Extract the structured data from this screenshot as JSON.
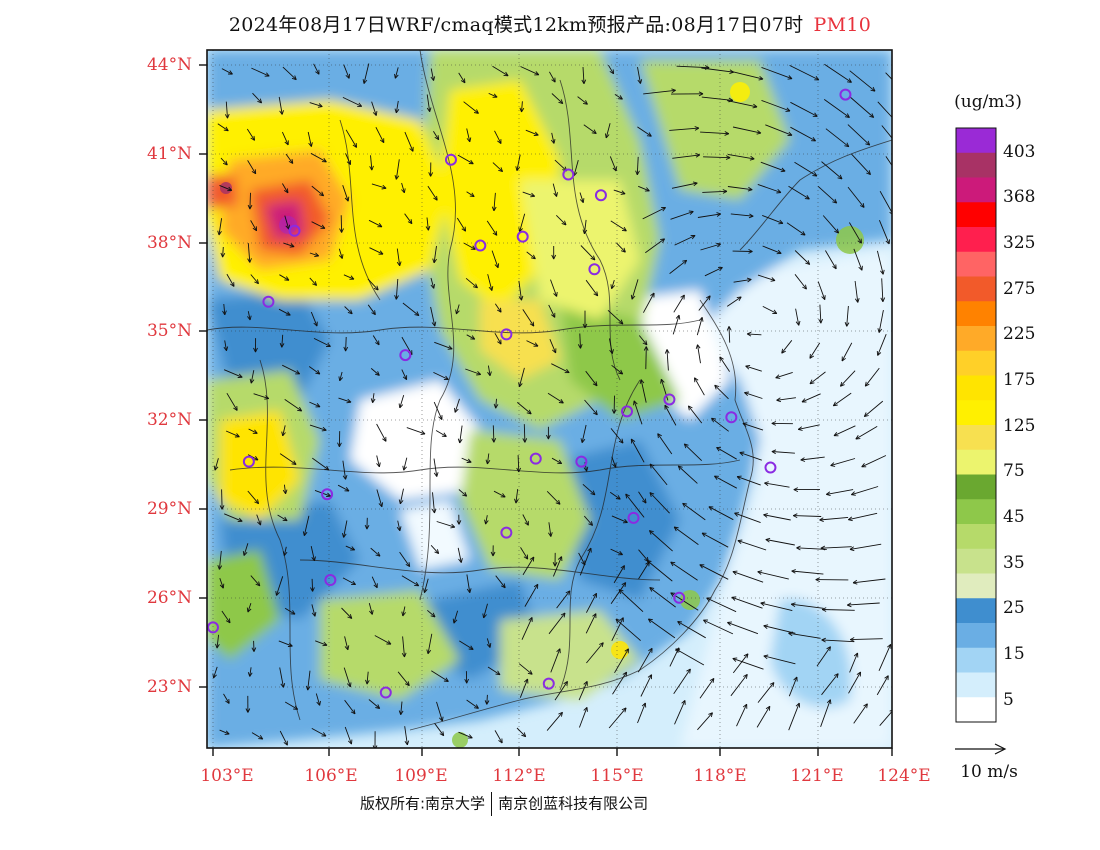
{
  "title": {
    "text": "2024年08月17日WRF/cmaq模式12km预报产品:08月17日07时",
    "pollutant": "PM10"
  },
  "lat_labels": [
    "44°N",
    "41°N",
    "38°N",
    "35°N",
    "32°N",
    "29°N",
    "26°N",
    "23°N"
  ],
  "lon_labels": [
    "103°E",
    "106°E",
    "109°E",
    "112°E",
    "115°E",
    "118°E",
    "121°E",
    "124°E"
  ],
  "colorbar": {
    "unit": "(ug/m3)",
    "labels": [
      "403",
      "368",
      "325",
      "275",
      "225",
      "175",
      "125",
      "75",
      "45",
      "35",
      "25",
      "15",
      "5"
    ],
    "colors": [
      "#9a2ad6",
      "#a83265",
      "#cc1a7a",
      "#ff0000",
      "#ff1f4e",
      "#ff6464",
      "#f25a2a",
      "#ff8200",
      "#ffaa28",
      "#ffd028",
      "#ffe400",
      "#fff000",
      "#f7e050",
      "#ecf46e",
      "#6aa830",
      "#8ec84a",
      "#b6da6a",
      "#c8e28c",
      "#e0ecbe",
      "#3f8ecf",
      "#6aaee4",
      "#a2d4f4",
      "#d4eefc",
      "#ffffff"
    ]
  },
  "wind_scale": {
    "label": "10 m/s"
  },
  "copyright": {
    "left": "版权所有:南京大学",
    "right": "南京创蓝科技有限公司"
  },
  "map": {
    "lon_range": [
      103,
      124
    ],
    "lat_range": [
      21,
      44.5
    ],
    "stations": [
      [
        122.4,
        43.0
      ],
      [
        110.3,
        40.8
      ],
      [
        113.9,
        40.3
      ],
      [
        114.9,
        39.6
      ],
      [
        105.5,
        38.4
      ],
      [
        111.2,
        37.9
      ],
      [
        112.5,
        38.2
      ],
      [
        114.7,
        37.1
      ],
      [
        104.7,
        36.0
      ],
      [
        112.0,
        34.9
      ],
      [
        108.9,
        34.2
      ],
      [
        115.7,
        32.3
      ],
      [
        117.0,
        32.7
      ],
      [
        118.9,
        32.1
      ],
      [
        104.1,
        30.6
      ],
      [
        106.5,
        29.5
      ],
      [
        112.9,
        30.7
      ],
      [
        114.3,
        30.6
      ],
      [
        115.9,
        28.7
      ],
      [
        112.0,
        28.2
      ],
      [
        106.6,
        26.6
      ],
      [
        117.3,
        26.0
      ],
      [
        103.0,
        25.0
      ],
      [
        108.3,
        22.8
      ],
      [
        113.3,
        23.1
      ],
      [
        120.1,
        30.4
      ]
    ]
  }
}
